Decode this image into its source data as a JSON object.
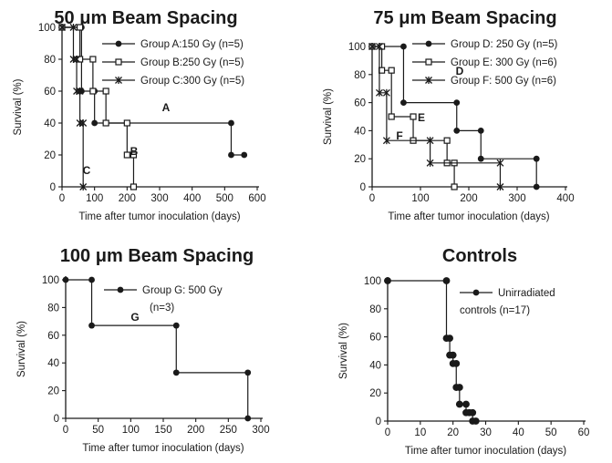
{
  "chart_data": [
    {
      "type": "line",
      "title_parts": [
        "50 ",
        "μ",
        "m Beam Spacing"
      ],
      "xlabel": "Time after tumor inoculation (days)",
      "ylabel": "Survival (%)",
      "xlim": [
        0,
        600
      ],
      "ylim": [
        0,
        100
      ],
      "xticks": [
        "0",
        "100",
        "200",
        "300",
        "400",
        "500",
        "600"
      ],
      "yticks": [
        "0",
        "20",
        "40",
        "60",
        "80",
        "100"
      ],
      "legend_position": "top-right",
      "series": [
        {
          "name": "Group A:150 Gy (n=5)",
          "label": "A",
          "marker": "circle",
          "x": [
            0,
            60,
            100,
            520,
            560
          ],
          "y": [
            100,
            60,
            40,
            20,
            20
          ]
        },
        {
          "name": "Group B:250 Gy (n=5)",
          "label": "B",
          "marker": "square",
          "x": [
            0,
            55,
            95,
            135,
            200,
            220
          ],
          "y": [
            100,
            80,
            60,
            40,
            20,
            0
          ]
        },
        {
          "name": "Group C:300 Gy (n=5)",
          "label": "C",
          "marker": "star",
          "x": [
            0,
            35,
            45,
            55,
            65
          ],
          "y": [
            100,
            80,
            60,
            40,
            0
          ]
        }
      ]
    },
    {
      "type": "line",
      "title_parts": [
        "75 ",
        "μ",
        "m Beam Spacing"
      ],
      "xlabel": "Time after tumor inoculation (days)",
      "ylabel": "Survival (%)",
      "xlim": [
        0,
        400
      ],
      "ylim": [
        0,
        100
      ],
      "xticks": [
        "0",
        "100",
        "200",
        "300",
        "400"
      ],
      "yticks": [
        "0",
        "20",
        "40",
        "60",
        "80",
        "100"
      ],
      "legend_position": "top-right",
      "series": [
        {
          "name": "Group D: 250 Gy (n=5)",
          "label": "D",
          "marker": "circle",
          "x": [
            0,
            65,
            175,
            225,
            340
          ],
          "y": [
            100,
            60,
            40,
            20,
            0
          ]
        },
        {
          "name": "Group E: 300 Gy (n=6)",
          "label": "E",
          "marker": "square",
          "x": [
            0,
            20,
            40,
            85,
            155,
            170
          ],
          "y": [
            100,
            83,
            50,
            33,
            17,
            0
          ]
        },
        {
          "name": "Group F: 500 Gy (n=6)",
          "label": "F",
          "marker": "star",
          "x": [
            0,
            15,
            30,
            120,
            265
          ],
          "y": [
            100,
            67,
            33,
            17,
            0
          ]
        }
      ]
    },
    {
      "type": "line",
      "title_parts": [
        "100 ",
        "μ",
        "m Beam Spacing"
      ],
      "xlabel": "Time after tumor inoculation (days)",
      "ylabel": "Survival (%)",
      "xlim": [
        0,
        300
      ],
      "ylim": [
        0,
        100
      ],
      "xticks": [
        "0",
        "50",
        "100",
        "150",
        "200",
        "250",
        "300"
      ],
      "yticks": [
        "0",
        "20",
        "40",
        "60",
        "80",
        "100"
      ],
      "legend_position": "top-right",
      "series": [
        {
          "name": "Group G: 500 Gy (n=3)",
          "name_lines": [
            "Group G: 500 Gy",
            "(n=3)"
          ],
          "label": "G",
          "marker": "circle",
          "x": [
            0,
            40,
            170,
            280
          ],
          "y": [
            100,
            67,
            33,
            0
          ]
        }
      ]
    },
    {
      "type": "line",
      "title_parts": [
        "Controls"
      ],
      "xlabel": "Time after tumor inoculation (days)",
      "ylabel": "Survival (%)",
      "xlim": [
        0,
        60
      ],
      "ylim": [
        0,
        100
      ],
      "xticks": [
        "0",
        "10",
        "20",
        "30",
        "40",
        "50",
        "60"
      ],
      "yticks": [
        "0",
        "20",
        "40",
        "60",
        "80",
        "100"
      ],
      "legend_position": "top-right",
      "series": [
        {
          "name": "Unirradiated controls (n=17)",
          "name_lines": [
            "Unirradiated",
            "controls (n=17)"
          ],
          "label": "",
          "marker": "circle",
          "x": [
            0,
            18,
            19,
            20,
            21,
            22,
            24,
            25,
            26,
            27
          ],
          "y": [
            100,
            59,
            47,
            41,
            24,
            12,
            6,
            6,
            0,
            0
          ]
        }
      ]
    }
  ]
}
